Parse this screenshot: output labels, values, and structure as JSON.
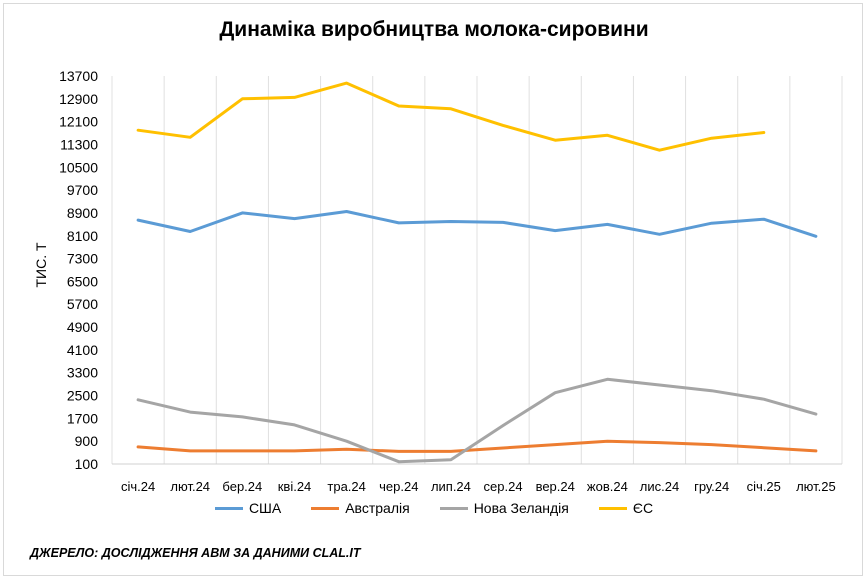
{
  "title": "Динаміка виробництва молока-сировини",
  "source": "ДЖЕРЕЛО: ДОСЛІДЖЕННЯ АВМ ЗА ДАНИМИ CLAL.IT",
  "chart_data": {
    "type": "line",
    "title": "Динаміка виробництва молока-сировини",
    "xlabel": "",
    "ylabel": "тис. т",
    "ylim": [
      100,
      13700
    ],
    "yticks": [
      100,
      900,
      1700,
      2500,
      3300,
      4100,
      4900,
      5700,
      6500,
      7300,
      8100,
      8900,
      9700,
      10500,
      11300,
      12100,
      12900,
      13700
    ],
    "categories": [
      "січ.24",
      "лют.24",
      "бер.24",
      "кві.24",
      "тра.24",
      "чер.24",
      "лип.24",
      "сер.24",
      "вер.24",
      "жов.24",
      "лис.24",
      "гру.24",
      "січ.25",
      "лют.25"
    ],
    "grid": "vertical",
    "legend": "bottom",
    "series": [
      {
        "name": "США",
        "color": "#5b9bd5",
        "values": [
          8650,
          8250,
          8900,
          8700,
          8950,
          8550,
          8600,
          8570,
          8280,
          8500,
          8150,
          8540,
          8680,
          8080
        ]
      },
      {
        "name": "Австралія",
        "color": "#ed7d31",
        "values": [
          700,
          560,
          560,
          560,
          620,
          540,
          540,
          660,
          780,
          900,
          850,
          780,
          670,
          560
        ]
      },
      {
        "name": "Нова Зеландія",
        "color": "#a5a5a5",
        "values": [
          2350,
          1920,
          1750,
          1470,
          900,
          180,
          250,
          1450,
          2600,
          3070,
          2870,
          2670,
          2370,
          1850
        ]
      },
      {
        "name": "ЄС",
        "color": "#ffc000",
        "values": [
          11800,
          11550,
          12900,
          12950,
          13450,
          12650,
          12550,
          11970,
          11450,
          11620,
          11100,
          11520,
          11720,
          null
        ]
      }
    ]
  }
}
